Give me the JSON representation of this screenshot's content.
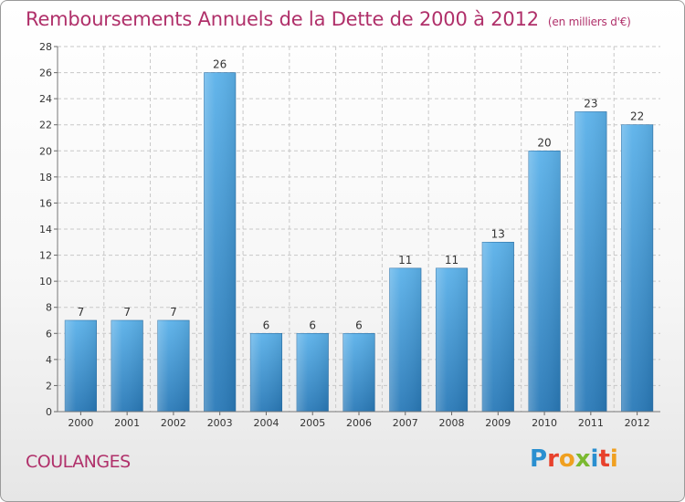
{
  "title": "Remboursements Annuels de la Dette de 2000 à 2012",
  "unit_label": "(en milliers d'€)",
  "commune": "COULANGES",
  "logo": {
    "text": "Proxiti",
    "letters": [
      {
        "ch": "P",
        "color": "#2a8fd0"
      },
      {
        "ch": "r",
        "color": "#e8412c"
      },
      {
        "ch": "o",
        "color": "#f0a020"
      },
      {
        "ch": "x",
        "color": "#7ab930"
      },
      {
        "ch": "i",
        "color": "#2a8fd0"
      },
      {
        "ch": "t",
        "color": "#e8412c"
      },
      {
        "ch": "i",
        "color": "#f0a020"
      }
    ]
  },
  "colors": {
    "title": "#b0306a",
    "bar_top": "#5cb2ea",
    "bar_bottom": "#2a7ab8",
    "grid": "#c8c8c8"
  },
  "chart_data": {
    "type": "bar",
    "categories": [
      "2000",
      "2001",
      "2002",
      "2003",
      "2004",
      "2005",
      "2006",
      "2007",
      "2008",
      "2009",
      "2010",
      "2011",
      "2012"
    ],
    "values": [
      7,
      7,
      7,
      26,
      6,
      6,
      6,
      11,
      11,
      13,
      20,
      23,
      22
    ],
    "ylim": [
      0,
      28
    ],
    "yticks": [
      0,
      2,
      4,
      6,
      8,
      10,
      12,
      14,
      16,
      18,
      20,
      22,
      24,
      26,
      28
    ],
    "grid": true,
    "data_labels": true,
    "xlabel": "",
    "ylabel": ""
  }
}
